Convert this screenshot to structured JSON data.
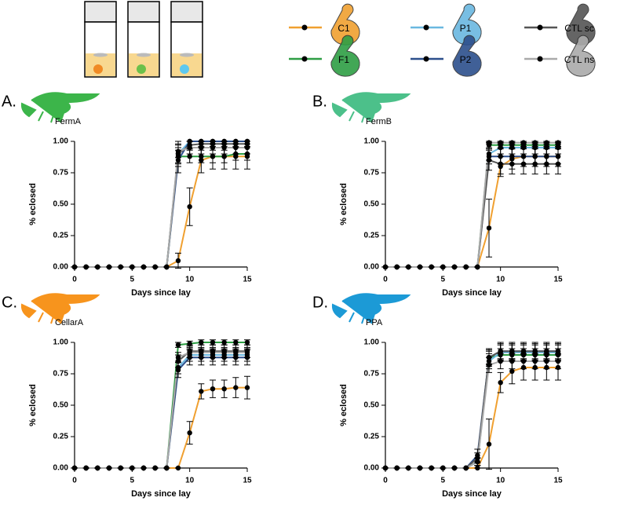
{
  "chart_data": [
    {
      "type": "line",
      "title": "A.",
      "subtitle": "FermA",
      "icon_color": "#3cb54a",
      "xlabel": "Days since lay",
      "ylabel": "% eclosed",
      "x": [
        0,
        1,
        2,
        3,
        4,
        5,
        6,
        7,
        8,
        9,
        10,
        11,
        12,
        13,
        14,
        15
      ],
      "xlim": [
        0,
        15
      ],
      "xticks": [
        0,
        5,
        10,
        15
      ],
      "ylim": [
        0,
        1
      ],
      "yticks": [
        {
          "value": 0,
          "label": "0.00"
        },
        {
          "value": 0.25,
          "label": "0.25"
        },
        {
          "value": 0.5,
          "label": "0.50"
        },
        {
          "value": 0.75,
          "label": "0.75"
        },
        {
          "value": 1,
          "label": "1.00"
        }
      ],
      "marker_color": "#000000",
      "series": [
        {
          "name": "C1",
          "color": "#f0a030",
          "values": [
            0,
            0,
            0,
            0,
            0,
            0,
            0,
            0,
            0,
            0.05,
            0.48,
            0.85,
            0.88,
            0.88,
            0.88,
            0.88
          ],
          "errors": [
            0,
            0,
            0,
            0,
            0,
            0,
            0,
            0,
            0,
            0.06,
            0.15,
            0.1,
            0.1,
            0.1,
            0.1,
            0.1
          ]
        },
        {
          "name": "F1",
          "color": "#2e9e44",
          "values": [
            0,
            0,
            0,
            0,
            0,
            0,
            0,
            0,
            0,
            0.88,
            0.88,
            0.88,
            0.88,
            0.88,
            0.9,
            0.9
          ],
          "errors": [
            0,
            0,
            0,
            0,
            0,
            0,
            0,
            0,
            0,
            0.05,
            0.05,
            0.05,
            0.05,
            0.05,
            0.05,
            0.05
          ]
        },
        {
          "name": "P1",
          "color": "#6ab8e0",
          "values": [
            0,
            0,
            0,
            0,
            0,
            0,
            0,
            0,
            0,
            0.9,
            1,
            1,
            1,
            1,
            1,
            1
          ],
          "errors": [
            0,
            0,
            0,
            0,
            0,
            0,
            0,
            0,
            0,
            0.08,
            0,
            0,
            0,
            0,
            0,
            0
          ]
        },
        {
          "name": "P2",
          "color": "#2c4f8c",
          "values": [
            0,
            0,
            0,
            0,
            0,
            0,
            0,
            0,
            0,
            0.85,
            1,
            1,
            1,
            1,
            1,
            1
          ],
          "errors": [
            0,
            0,
            0,
            0,
            0,
            0,
            0,
            0,
            0,
            0.1,
            0,
            0,
            0,
            0,
            0,
            0
          ]
        },
        {
          "name": "CTL sc",
          "color": "#555555",
          "values": [
            0,
            0,
            0,
            0,
            0,
            0,
            0,
            0,
            0,
            0.9,
            0.97,
            0.98,
            0.98,
            0.98,
            0.98,
            0.98
          ],
          "errors": [
            0,
            0,
            0,
            0,
            0,
            0,
            0,
            0,
            0,
            0.1,
            0.03,
            0.02,
            0.02,
            0.02,
            0.02,
            0.02
          ]
        },
        {
          "name": "CTL ns",
          "color": "#aaaaaa",
          "values": [
            0,
            0,
            0,
            0,
            0,
            0,
            0,
            0,
            0,
            0.92,
            0.95,
            0.95,
            0.95,
            0.95,
            0.95,
            0.95
          ],
          "errors": [
            0,
            0,
            0,
            0,
            0,
            0,
            0,
            0,
            0,
            0.05,
            0.05,
            0.05,
            0.05,
            0.05,
            0.05,
            0.05
          ]
        }
      ]
    },
    {
      "type": "line",
      "title": "B.",
      "subtitle": "FermB",
      "icon_color": "#4cc08a",
      "xlabel": "Days since lay",
      "ylabel": "% eclosed",
      "x": [
        0,
        1,
        2,
        3,
        4,
        5,
        6,
        7,
        8,
        9,
        10,
        11,
        12,
        13,
        14,
        15
      ],
      "xlim": [
        0,
        15
      ],
      "xticks": [
        0,
        5,
        10,
        15
      ],
      "ylim": [
        0,
        1
      ],
      "yticks": [
        {
          "value": 0,
          "label": "0.00"
        },
        {
          "value": 0.25,
          "label": "0.25"
        },
        {
          "value": 0.5,
          "label": "0.50"
        },
        {
          "value": 0.75,
          "label": "0.75"
        },
        {
          "value": 1,
          "label": "1.00"
        }
      ],
      "marker_color": "#000000",
      "series": [
        {
          "name": "C1",
          "color": "#f0a030",
          "values": [
            0,
            0,
            0,
            0,
            0,
            0,
            0,
            0,
            0,
            0.31,
            0.8,
            0.86,
            0.88,
            0.88,
            0.88,
            0.88
          ],
          "errors": [
            0,
            0,
            0,
            0,
            0,
            0,
            0,
            0,
            0,
            0.23,
            0.08,
            0.08,
            0.08,
            0.08,
            0.08,
            0.08
          ]
        },
        {
          "name": "F1",
          "color": "#2e9e44",
          "values": [
            0,
            0,
            0,
            0,
            0,
            0,
            0,
            0,
            0,
            0.97,
            0.97,
            0.97,
            0.97,
            0.97,
            0.97,
            0.97
          ],
          "errors": [
            0,
            0,
            0,
            0,
            0,
            0,
            0,
            0,
            0,
            0.02,
            0.02,
            0.02,
            0.02,
            0.02,
            0.02,
            0.02
          ]
        },
        {
          "name": "P1",
          "color": "#6ab8e0",
          "values": [
            0,
            0,
            0,
            0,
            0,
            0,
            0,
            0,
            0,
            0.9,
            0.95,
            0.95,
            0.95,
            0.95,
            0.95,
            0.95
          ],
          "errors": [
            0,
            0,
            0,
            0,
            0,
            0,
            0,
            0,
            0,
            0.05,
            0.05,
            0.05,
            0.05,
            0.05,
            0.05,
            0.05
          ]
        },
        {
          "name": "P2",
          "color": "#2c4f8c",
          "values": [
            0,
            0,
            0,
            0,
            0,
            0,
            0,
            0,
            0,
            0.88,
            0.88,
            0.88,
            0.88,
            0.88,
            0.88,
            0.88
          ],
          "errors": [
            0,
            0,
            0,
            0,
            0,
            0,
            0,
            0,
            0,
            0.06,
            0.06,
            0.06,
            0.06,
            0.06,
            0.06,
            0.06
          ]
        },
        {
          "name": "CTL sc",
          "color": "#555555",
          "values": [
            0,
            0,
            0,
            0,
            0,
            0,
            0,
            0,
            0,
            0.85,
            0.82,
            0.82,
            0.82,
            0.82,
            0.82,
            0.82
          ],
          "errors": [
            0,
            0,
            0,
            0,
            0,
            0,
            0,
            0,
            0,
            0.08,
            0.08,
            0.08,
            0.08,
            0.08,
            0.08,
            0.08
          ]
        },
        {
          "name": "CTL ns",
          "color": "#aaaaaa",
          "values": [
            0,
            0,
            0,
            0,
            0,
            0,
            0,
            0,
            0,
            0.99,
            0.99,
            0.99,
            0.99,
            0.99,
            0.99,
            0.99
          ],
          "errors": [
            0,
            0,
            0,
            0,
            0,
            0,
            0,
            0,
            0,
            0.01,
            0.01,
            0.01,
            0.01,
            0.01,
            0.01,
            0.01
          ]
        }
      ]
    },
    {
      "type": "line",
      "title": "C.",
      "subtitle": "CellarA",
      "icon_color": "#f7941d",
      "xlabel": "Days since lay",
      "ylabel": "% eclosed",
      "x": [
        0,
        1,
        2,
        3,
        4,
        5,
        6,
        7,
        8,
        9,
        10,
        11,
        12,
        13,
        14,
        15
      ],
      "xlim": [
        0,
        15
      ],
      "xticks": [
        0,
        5,
        10,
        15
      ],
      "ylim": [
        0,
        1
      ],
      "yticks": [
        {
          "value": 0,
          "label": "0.00"
        },
        {
          "value": 0.25,
          "label": "0.25"
        },
        {
          "value": 0.5,
          "label": "0.50"
        },
        {
          "value": 0.75,
          "label": "0.75"
        },
        {
          "value": 1,
          "label": "1.00"
        }
      ],
      "marker_color": "#000000",
      "series": [
        {
          "name": "C1",
          "color": "#f0a030",
          "values": [
            0,
            0,
            0,
            0,
            0,
            0,
            0,
            0,
            0,
            0,
            0.28,
            0.61,
            0.63,
            0.63,
            0.64,
            0.64
          ],
          "errors": [
            0,
            0,
            0,
            0,
            0,
            0,
            0,
            0,
            0,
            0,
            0.09,
            0.06,
            0.07,
            0.07,
            0.08,
            0.09
          ]
        },
        {
          "name": "F1",
          "color": "#2e9e44",
          "values": [
            0,
            0,
            0,
            0,
            0,
            0,
            0,
            0,
            0,
            0.98,
            0.99,
            1,
            1,
            1,
            1,
            1
          ],
          "errors": [
            0,
            0,
            0,
            0,
            0,
            0,
            0,
            0,
            0,
            0.02,
            0.02,
            0.02,
            0.02,
            0.02,
            0.02,
            0.02
          ]
        },
        {
          "name": "P1",
          "color": "#6ab8e0",
          "values": [
            0,
            0,
            0,
            0,
            0,
            0,
            0,
            0,
            0,
            0.8,
            0.9,
            0.9,
            0.9,
            0.9,
            0.9,
            0.9
          ],
          "errors": [
            0,
            0,
            0,
            0,
            0,
            0,
            0,
            0,
            0,
            0.05,
            0.05,
            0.05,
            0.05,
            0.05,
            0.05,
            0.05
          ]
        },
        {
          "name": "P2",
          "color": "#2c4f8c",
          "values": [
            0,
            0,
            0,
            0,
            0,
            0,
            0,
            0,
            0,
            0.78,
            0.88,
            0.88,
            0.88,
            0.88,
            0.88,
            0.88
          ],
          "errors": [
            0,
            0,
            0,
            0,
            0,
            0,
            0,
            0,
            0,
            0.06,
            0.06,
            0.06,
            0.06,
            0.06,
            0.06,
            0.06
          ]
        },
        {
          "name": "CTL sc",
          "color": "#555555",
          "values": [
            0,
            0,
            0,
            0,
            0,
            0,
            0,
            0,
            0,
            0.85,
            0.93,
            0.93,
            0.93,
            0.93,
            0.93,
            0.93
          ],
          "errors": [
            0,
            0,
            0,
            0,
            0,
            0,
            0,
            0,
            0,
            0.05,
            0.05,
            0.05,
            0.05,
            0.05,
            0.05,
            0.05
          ]
        },
        {
          "name": "CTL ns",
          "color": "#aaaaaa",
          "values": [
            0,
            0,
            0,
            0,
            0,
            0,
            0,
            0,
            0,
            0.88,
            0.92,
            0.92,
            0.92,
            0.92,
            0.92,
            0.92
          ],
          "errors": [
            0,
            0,
            0,
            0,
            0,
            0,
            0,
            0,
            0,
            0.04,
            0.04,
            0.04,
            0.04,
            0.04,
            0.04,
            0.04
          ]
        }
      ]
    },
    {
      "type": "line",
      "title": "D.",
      "subtitle": "PPA",
      "icon_color": "#1c9ad6",
      "xlabel": "Days since lay",
      "ylabel": "% eclosed",
      "x": [
        0,
        1,
        2,
        3,
        4,
        5,
        6,
        7,
        8,
        9,
        10,
        11,
        12,
        13,
        14,
        15
      ],
      "xlim": [
        0,
        15
      ],
      "xticks": [
        0,
        5,
        10,
        15
      ],
      "ylim": [
        0,
        1
      ],
      "yticks": [
        {
          "value": 0,
          "label": "0.00"
        },
        {
          "value": 0.25,
          "label": "0.25"
        },
        {
          "value": 0.5,
          "label": "0.50"
        },
        {
          "value": 0.75,
          "label": "0.75"
        },
        {
          "value": 1,
          "label": "1.00"
        }
      ],
      "marker_color": "#000000",
      "series": [
        {
          "name": "C1",
          "color": "#f0a030",
          "values": [
            0,
            0,
            0,
            0,
            0,
            0,
            0,
            0,
            0,
            0.19,
            0.68,
            0.77,
            0.8,
            0.8,
            0.8,
            0.8
          ],
          "errors": [
            0,
            0,
            0,
            0,
            0,
            0,
            0,
            0,
            0,
            0.2,
            0.08,
            0.1,
            0.1,
            0.1,
            0.1,
            0.1
          ]
        },
        {
          "name": "F1",
          "color": "#2e9e44",
          "values": [
            0,
            0,
            0,
            0,
            0,
            0,
            0,
            0,
            0.05,
            0.88,
            0.9,
            0.9,
            0.9,
            0.9,
            0.9,
            0.9
          ],
          "errors": [
            0,
            0,
            0,
            0,
            0,
            0,
            0,
            0,
            0.03,
            0.05,
            0.05,
            0.05,
            0.05,
            0.05,
            0.05,
            0.05
          ]
        },
        {
          "name": "P1",
          "color": "#6ab8e0",
          "values": [
            0,
            0,
            0,
            0,
            0,
            0,
            0,
            0,
            0.05,
            0.85,
            0.92,
            0.92,
            0.92,
            0.92,
            0.92,
            0.92
          ],
          "errors": [
            0,
            0,
            0,
            0,
            0,
            0,
            0,
            0,
            0.03,
            0.06,
            0.06,
            0.06,
            0.06,
            0.06,
            0.06,
            0.06
          ]
        },
        {
          "name": "P2",
          "color": "#2c4f8c",
          "values": [
            0,
            0,
            0,
            0,
            0,
            0,
            0,
            0,
            0.1,
            0.88,
            0.93,
            0.93,
            0.93,
            0.93,
            0.93,
            0.93
          ],
          "errors": [
            0,
            0,
            0,
            0,
            0,
            0,
            0,
            0,
            0.05,
            0.06,
            0.06,
            0.06,
            0.06,
            0.06,
            0.06,
            0.06
          ]
        },
        {
          "name": "CTL sc",
          "color": "#555555",
          "values": [
            0,
            0,
            0,
            0,
            0,
            0,
            0,
            0,
            0.08,
            0.88,
            0.93,
            0.93,
            0.93,
            0.93,
            0.93,
            0.93
          ],
          "errors": [
            0,
            0,
            0,
            0,
            0,
            0,
            0,
            0,
            0.04,
            0.07,
            0.07,
            0.07,
            0.07,
            0.07,
            0.07,
            0.07
          ]
        },
        {
          "name": "CTL ns",
          "color": "#aaaaaa",
          "values": [
            0,
            0,
            0,
            0,
            0,
            0,
            0,
            0,
            0.05,
            0.82,
            0.85,
            0.85,
            0.85,
            0.85,
            0.85,
            0.85
          ],
          "errors": [
            0,
            0,
            0,
            0,
            0,
            0,
            0,
            0,
            0.03,
            0.06,
            0.06,
            0.06,
            0.06,
            0.06,
            0.06,
            0.06
          ]
        }
      ]
    }
  ]
}
